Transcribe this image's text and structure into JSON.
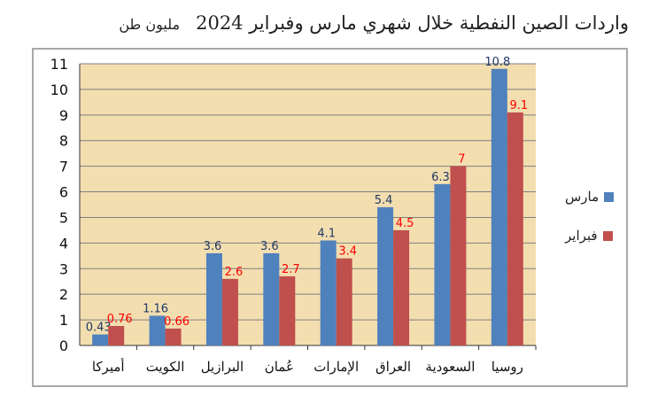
{
  "title": {
    "main": "واردات الصين النفطية  خلال شهري مارس وفبراير 2024",
    "unit": "مليون طن"
  },
  "colors": {
    "march": "#4f81bd",
    "feb": "#c0504d",
    "march_label": "#1f3864",
    "feb_label": "#ff0000",
    "plot_bg": "#f3deb0",
    "grid": "#7f7f7f"
  },
  "chart_data": {
    "type": "bar",
    "categories": [
      "أميركا",
      "الكويت",
      "البرازيل",
      "عُمان",
      "الإمارات",
      "العراق",
      "السعودية",
      "روسيا"
    ],
    "series": [
      {
        "name": "مارس",
        "values": [
          0.43,
          1.16,
          3.6,
          3.6,
          4.1,
          5.4,
          6.3,
          10.8
        ]
      },
      {
        "name": "فبراير",
        "values": [
          0.76,
          0.66,
          2.6,
          2.7,
          3.4,
          4.5,
          7,
          9.1
        ]
      }
    ],
    "ylim": [
      0,
      11
    ],
    "yticks": [
      0,
      1,
      2,
      3,
      4,
      5,
      6,
      7,
      8,
      9,
      10,
      11
    ],
    "grid": true,
    "legend_position": "right"
  }
}
